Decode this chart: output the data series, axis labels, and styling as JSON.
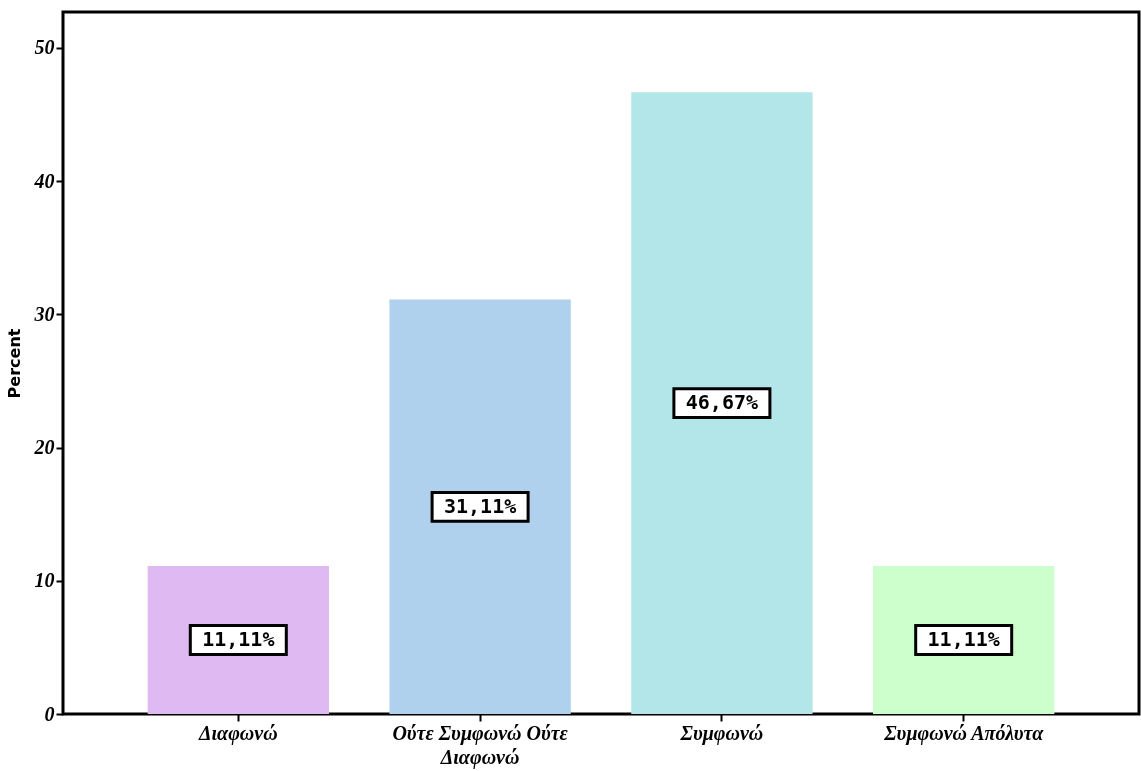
{
  "chart_data": {
    "type": "bar",
    "ylabel": "Percent",
    "categories": [
      "Διαφωνώ",
      "Ούτε Συμφωνώ Ούτε Διαφωνώ",
      "Συμφωνώ",
      "Συμφωνώ Απόλυτα"
    ],
    "values": [
      11.11,
      31.11,
      46.67,
      11.11
    ],
    "colors": [
      "#dfbaf2",
      "#afd1ee",
      "#b3e6e8",
      "#ccffcc"
    ],
    "value_labels": [
      "11,11%",
      "31,11%",
      "46,67%",
      "11,11%"
    ],
    "ylim": [
      0,
      52.7
    ],
    "yticks": [
      0,
      10,
      20,
      30,
      40,
      50
    ],
    "grid": false
  }
}
